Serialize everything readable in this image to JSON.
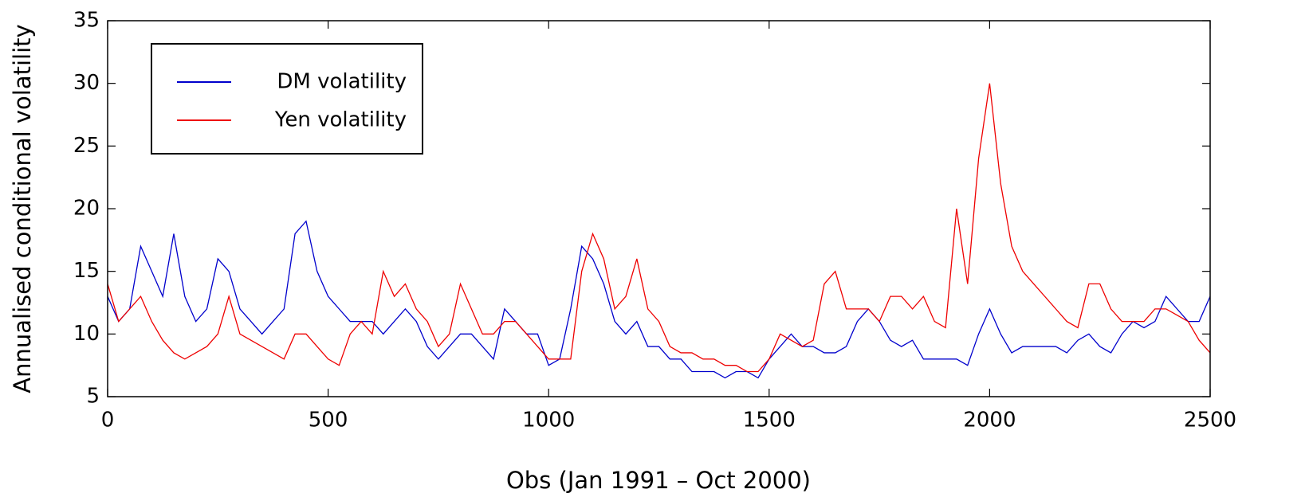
{
  "chart_data": {
    "type": "line",
    "x_label": "Obs (Jan 1991 – Oct 2000)",
    "y_label": "Annualised conditional volatility",
    "xlim": [
      0,
      2500
    ],
    "ylim": [
      5,
      35
    ],
    "xticks": [
      0,
      500,
      1000,
      1500,
      2000,
      2500
    ],
    "yticks": [
      5,
      10,
      15,
      20,
      25,
      30,
      35
    ],
    "legend": "upper left",
    "x": [
      0,
      25,
      50,
      75,
      100,
      125,
      150,
      175,
      200,
      225,
      250,
      275,
      300,
      325,
      350,
      375,
      400,
      425,
      450,
      475,
      500,
      525,
      550,
      575,
      600,
      625,
      650,
      675,
      700,
      725,
      750,
      775,
      800,
      825,
      850,
      875,
      900,
      925,
      950,
      975,
      1000,
      1025,
      1050,
      1075,
      1100,
      1125,
      1150,
      1175,
      1200,
      1225,
      1250,
      1275,
      1300,
      1325,
      1350,
      1375,
      1400,
      1425,
      1450,
      1475,
      1500,
      1525,
      1550,
      1575,
      1600,
      1625,
      1650,
      1675,
      1700,
      1725,
      1750,
      1775,
      1800,
      1825,
      1850,
      1875,
      1900,
      1925,
      1950,
      1975,
      2000,
      2025,
      2050,
      2075,
      2100,
      2125,
      2150,
      2175,
      2200,
      2225,
      2250,
      2275,
      2300,
      2325,
      2350,
      2375,
      2400,
      2425,
      2450,
      2475,
      2500
    ],
    "series": [
      {
        "name": "DM volatility",
        "color": "#0000cc",
        "values": [
          13,
          11,
          12,
          17,
          15,
          13,
          18,
          13,
          11,
          12,
          16,
          15,
          12,
          11,
          10,
          11,
          12,
          18,
          19,
          15,
          13,
          12,
          11,
          11,
          11,
          10,
          11,
          12,
          11,
          9,
          8,
          9,
          10,
          10,
          9,
          8,
          12,
          11,
          10,
          10,
          7.5,
          8,
          12,
          17,
          16,
          14,
          11,
          10,
          11,
          9,
          9,
          8,
          8,
          7,
          7,
          7,
          6.5,
          7,
          7,
          6.5,
          8,
          9,
          10,
          9,
          9,
          8.5,
          8.5,
          9,
          11,
          12,
          11,
          9.5,
          9,
          9.5,
          8,
          8,
          8,
          8,
          7.5,
          10,
          12,
          10,
          8.5,
          9,
          9,
          9,
          9,
          8.5,
          9.5,
          10,
          9,
          8.5,
          10,
          11,
          10.5,
          11,
          13,
          12,
          11,
          11,
          13
        ]
      },
      {
        "name": "Yen volatility",
        "color": "#ee0000",
        "values": [
          14,
          11,
          12,
          13,
          11,
          9.5,
          8.5,
          8,
          8.5,
          9,
          10,
          13,
          10,
          9.5,
          9,
          8.5,
          8,
          10,
          10,
          9,
          8,
          7.5,
          10,
          11,
          10,
          15,
          13,
          14,
          12,
          11,
          9,
          10,
          14,
          12,
          10,
          10,
          11,
          11,
          10,
          9,
          8,
          8,
          8,
          15,
          18,
          16,
          12,
          13,
          16,
          12,
          11,
          9,
          8.5,
          8.5,
          8,
          8,
          7.5,
          7.5,
          7,
          7,
          8,
          10,
          9.5,
          9,
          9.5,
          14,
          15,
          12,
          12,
          12,
          11,
          13,
          13,
          12,
          13,
          11,
          10.5,
          20,
          14,
          24,
          30,
          22,
          17,
          15,
          14,
          13,
          12,
          11,
          10.5,
          14,
          14,
          12,
          11,
          11,
          11,
          12,
          12,
          11.5,
          11,
          9.5,
          8.5
        ]
      }
    ]
  }
}
